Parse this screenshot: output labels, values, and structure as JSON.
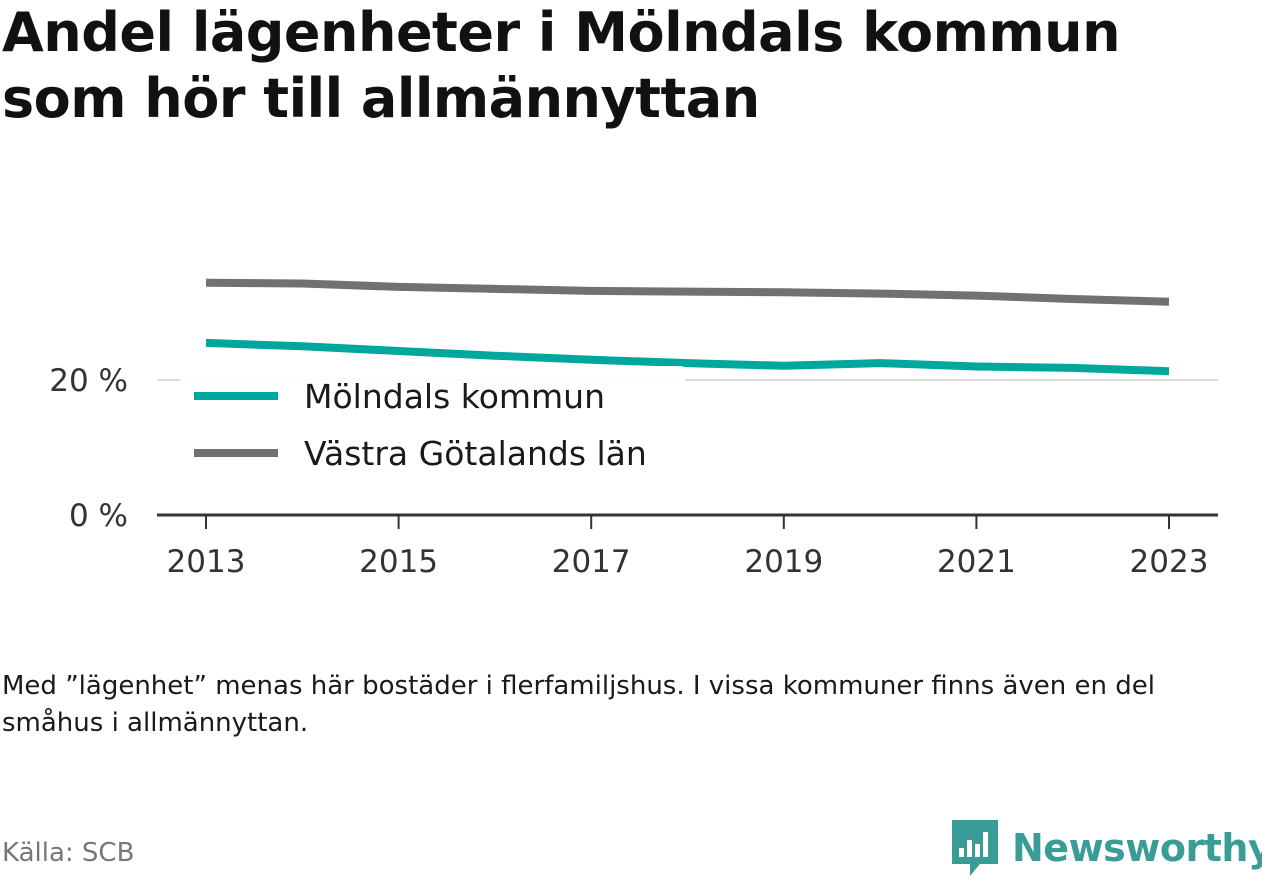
{
  "title": "Andel lägenheter i Mölndals kommun som hör till allmännyttan",
  "note": "Med ”lägenhet” menas här bostäder i flerfamiljshus. I vissa kommuner finns även en del småhus i allmännyttan.",
  "source": "Källa: SCB",
  "brand": {
    "name": "Newsworthy",
    "icon": "newsworthy-logo-icon",
    "color": "#3a9c96"
  },
  "chart_data": {
    "type": "line",
    "x": [
      2013,
      2014,
      2015,
      2016,
      2017,
      2018,
      2019,
      2020,
      2021,
      2022,
      2023
    ],
    "xticks": [
      "2013",
      "2015",
      "2017",
      "2019",
      "2021",
      "2023"
    ],
    "yticks": [
      "0 %",
      "20 %"
    ],
    "ylim": [
      0,
      30
    ],
    "grid": true,
    "legend_position": "inside-left",
    "series": [
      {
        "name": "Mölndals kommun",
        "color": "#00a79d",
        "values": [
          25.5,
          25.0,
          24.3,
          23.6,
          23.0,
          22.5,
          22.1,
          22.5,
          22.0,
          21.8,
          21.3
        ]
      },
      {
        "name": "Västra Götalands län",
        "color": "#707075",
        "values": [
          34.4,
          34.3,
          33.8,
          33.5,
          33.2,
          33.1,
          33.0,
          32.8,
          32.5,
          32.0,
          31.6
        ]
      }
    ]
  }
}
